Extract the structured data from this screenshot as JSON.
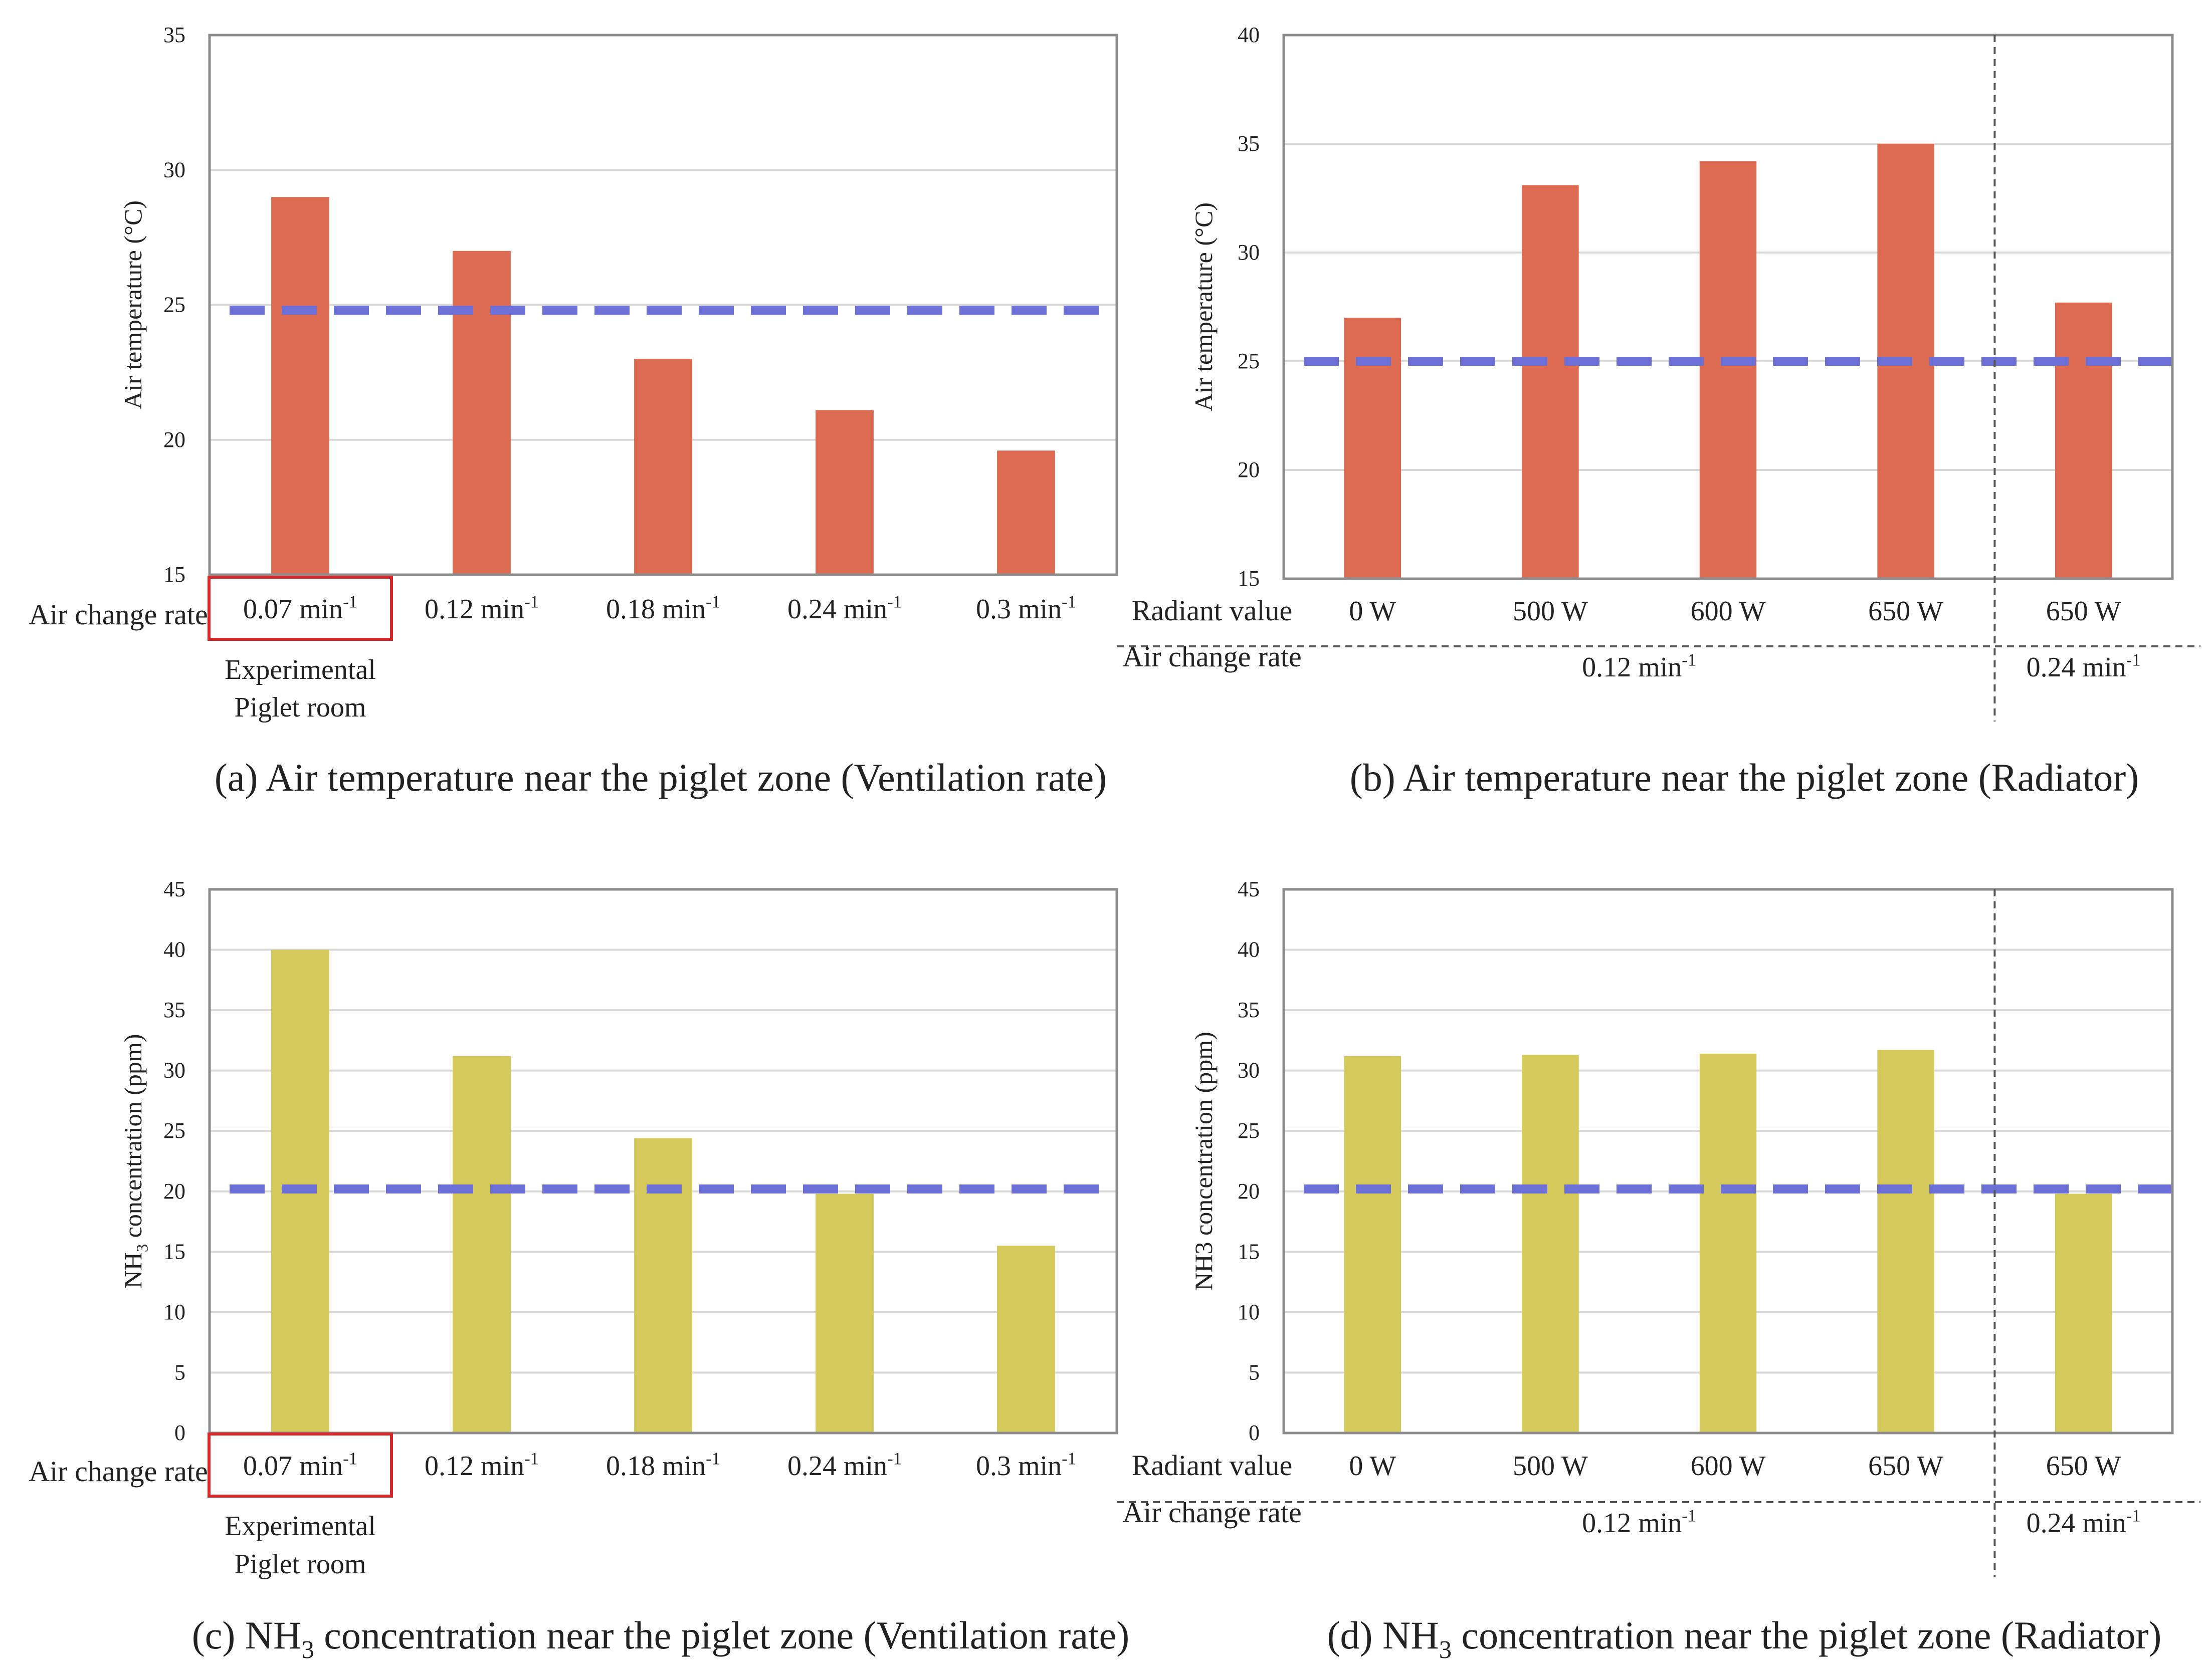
{
  "chart_data": [
    {
      "type": "bar",
      "id": "a",
      "title": "(a) Air temperature near the piglet zone (Ventilation rate)",
      "ylabel": "Air temperature (°C)",
      "ylim": [
        15,
        35
      ],
      "yticks": [
        15,
        20,
        25,
        30,
        35
      ],
      "categories": [
        "0.07 min",
        "0.12 min",
        "0.18 min",
        "0.24 min",
        "0.3 min"
      ],
      "category_superscript": "-1",
      "values": [
        29,
        27,
        23,
        21.1,
        19.6
      ],
      "bar_color": "#dc6b52",
      "reference_line": 24.8,
      "reference_color": "#6b6fd6",
      "xlabel": "Air change rate",
      "highlight_index": 0,
      "highlight_note": [
        "Experimental",
        "Piglet room"
      ]
    },
    {
      "type": "bar",
      "id": "b",
      "title": "(b) Air temperature near the piglet zone (Radiator)",
      "ylabel": "Air temperature (°C)",
      "ylim": [
        15,
        40
      ],
      "yticks": [
        15,
        20,
        25,
        30,
        35,
        40
      ],
      "categories": [
        "0 W",
        "500 W",
        "600 W",
        "650 W",
        "650 W"
      ],
      "values": [
        27,
        33.1,
        34.2,
        35,
        27.7
      ],
      "bar_color": "#dc6b52",
      "reference_line": 25,
      "reference_color": "#6b6fd6",
      "row_label_top": "Radiant value",
      "row_label_bottom": "Air change rate",
      "groups": [
        {
          "label": "0.12 min",
          "sup": "-1"
        },
        {
          "label": "0.24 min",
          "sup": "-1"
        }
      ],
      "divider_after_index": 3
    },
    {
      "type": "bar",
      "id": "c",
      "title_parts": [
        "(c) NH",
        "3",
        " concentration near the piglet zone (Ventilation rate)"
      ],
      "ylabel_parts": [
        "NH",
        "3",
        " concentration (ppm)"
      ],
      "ylim": [
        0,
        45
      ],
      "yticks": [
        0,
        5,
        10,
        15,
        20,
        25,
        30,
        35,
        40,
        45
      ],
      "categories": [
        "0.07 min",
        "0.12 min",
        "0.18 min",
        "0.24 min",
        "0.3 min"
      ],
      "category_superscript": "-1",
      "values": [
        40,
        31.2,
        24.4,
        19.8,
        15.5
      ],
      "bar_color": "#d4c95a",
      "reference_line": 20.2,
      "reference_color": "#6b6fd6",
      "xlabel": "Air change rate",
      "highlight_index": 0,
      "highlight_note": [
        "Experimental",
        "Piglet room"
      ]
    },
    {
      "type": "bar",
      "id": "d",
      "title_parts": [
        "(d) NH",
        "3",
        " concentration near the piglet zone (Radiator)"
      ],
      "ylabel": "NH3 concentration (ppm)",
      "ylim": [
        0,
        45
      ],
      "yticks": [
        0,
        5,
        10,
        15,
        20,
        25,
        30,
        35,
        40,
        45
      ],
      "categories": [
        "0 W",
        "500 W",
        "600 W",
        "650 W",
        "650 W"
      ],
      "values": [
        31.2,
        31.3,
        31.4,
        31.7,
        19.8
      ],
      "bar_color": "#d4c95a",
      "reference_line": 20.2,
      "reference_color": "#6b6fd6",
      "row_label_top": "Radiant value",
      "row_label_bottom": "Air change rate",
      "groups": [
        {
          "label": "0.12 min",
          "sup": "-1"
        },
        {
          "label": "0.24 min",
          "sup": "-1"
        }
      ],
      "divider_after_index": 3
    }
  ]
}
